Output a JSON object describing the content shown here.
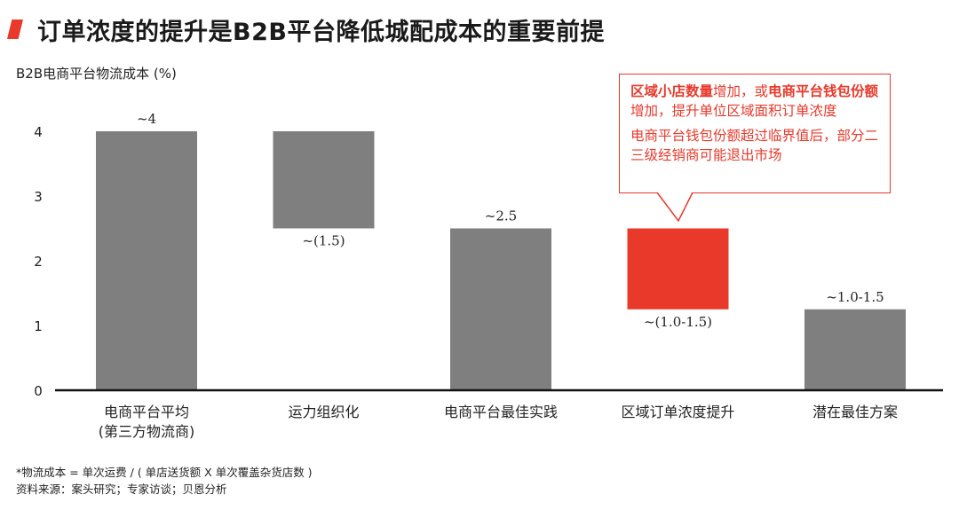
{
  "header": {
    "title": "订单浓度的提升是B2B平台降低城配成本的重要前提"
  },
  "colors": {
    "accent": "#e8392b",
    "bar_gray": "#7f7f7f",
    "axis": "#111111"
  },
  "callout": {
    "line1_strong_a": "区域小店数量",
    "line1_normal_a": "增加，或",
    "line1_strong_b": "电商平台钱包份额",
    "line1_normal_b": "增加，提升单位区域面积订单浓度",
    "line2": "电商平台钱包份额超过临界值后，部分二三级经销商可能退出市场"
  },
  "footnote": {
    "line1": "*物流成本 = 单次运费 / ( 单店送货额 X 单次覆盖杂货店数 )",
    "line2": "资料来源：案头研究；专家访谈；贝恩分析"
  },
  "chart_data": {
    "type": "bar",
    "subtype": "waterfall",
    "title": "",
    "xlabel": "",
    "ylabel": "B2B电商平台物流成本 (%)",
    "ylim": [
      0,
      4.6
    ],
    "yticks": [
      0,
      1,
      2,
      3,
      4
    ],
    "grid": false,
    "categories": [
      "电商平台平均\n(第三方物流商)",
      "运力组织化",
      "电商平台最佳实践",
      "区域订单浓度提升",
      "潜在最佳方案"
    ],
    "bars": [
      {
        "bottom": 0,
        "top": 4,
        "kind": "total",
        "label": "~4",
        "label_pos": "above"
      },
      {
        "bottom": 2.5,
        "top": 4,
        "kind": "decrease",
        "label": "~(1.5)",
        "label_pos": "below"
      },
      {
        "bottom": 0,
        "top": 2.5,
        "kind": "total",
        "label": "~2.5",
        "label_pos": "above"
      },
      {
        "bottom": 1.25,
        "top": 2.5,
        "kind": "highlight",
        "label": "~(1.0-1.5)",
        "label_pos": "below"
      },
      {
        "bottom": 0,
        "top": 1.25,
        "kind": "total",
        "label": "~1.0-1.5",
        "label_pos": "above"
      }
    ]
  }
}
